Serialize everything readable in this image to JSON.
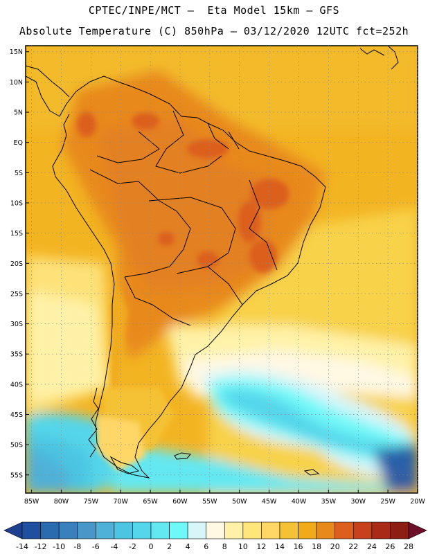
{
  "header": {
    "line1": "CPTEC/INPE/MCT –  Eta Model 15km – GFS",
    "line2": "Absolute Temperature (C) 850hPa – 03/12/2020 12UTC fct=252h"
  },
  "map": {
    "region": "South America",
    "variable": "Absolute Temperature (C)",
    "level": "850hPa",
    "lat_labels": [
      "15N",
      "10N",
      "5N",
      "EQ",
      "5S",
      "10S",
      "15S",
      "20S",
      "25S",
      "30S",
      "35S",
      "40S",
      "45S",
      "50S",
      "55S"
    ],
    "lon_labels": [
      "85W",
      "80W",
      "75W",
      "70W",
      "65W",
      "60W",
      "55W",
      "50W",
      "45W",
      "40W",
      "35W",
      "30W",
      "25W",
      "20W"
    ],
    "extent": {
      "lon_min": -86,
      "lon_max": -20,
      "lat_min": -58,
      "lat_max": 16
    }
  },
  "colorbar": {
    "labels": [
      "-14",
      "-12",
      "-10",
      "-8",
      "-6",
      "-4",
      "-2",
      "0",
      "2",
      "4",
      "6",
      "8",
      "10",
      "12",
      "14",
      "16",
      "18",
      "20",
      "22",
      "24",
      "26",
      "28"
    ],
    "colors": [
      "#1f3f8f",
      "#1f4f9f",
      "#2a6aaf",
      "#3a80bd",
      "#4a96c8",
      "#4fb0d8",
      "#4cc5e2",
      "#55d6ea",
      "#63e8f2",
      "#6ff8f8",
      "#d6f6fa",
      "#fff8e3",
      "#fff2a8",
      "#ffe57a",
      "#ffd766",
      "#f5c235",
      "#f1ab1a",
      "#e8891b",
      "#dc5f1e",
      "#c8411d",
      "#a92a16",
      "#8d1e14",
      "#6e0f2a"
    ]
  }
}
